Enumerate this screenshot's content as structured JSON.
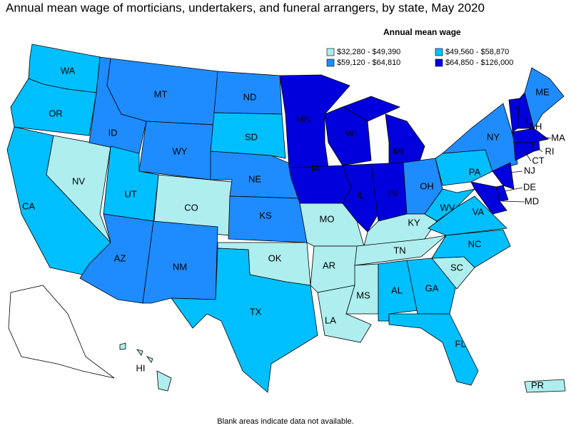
{
  "title": "Annual mean wage of morticians, undertakers, and funeral arrangers, by state, May 2020",
  "legend": {
    "title": "Annual mean wage",
    "items": [
      {
        "label": "$32,280 - $49,390",
        "color": "#aeeeee"
      },
      {
        "label": "$49,560 - $58,870",
        "color": "#00bfff"
      },
      {
        "label": "$59,120 - $64,810",
        "color": "#1e8cff"
      },
      {
        "label": "$64,850 - $126,000",
        "color": "#0000dd"
      }
    ]
  },
  "states": [
    {
      "abbr": "WA",
      "class": 1
    },
    {
      "abbr": "OR",
      "class": 1
    },
    {
      "abbr": "CA",
      "class": 1
    },
    {
      "abbr": "NV",
      "class": 0
    },
    {
      "abbr": "ID",
      "class": 2
    },
    {
      "abbr": "MT",
      "class": 2
    },
    {
      "abbr": "WY",
      "class": 2
    },
    {
      "abbr": "UT",
      "class": 1
    },
    {
      "abbr": "CO",
      "class": 0
    },
    {
      "abbr": "AZ",
      "class": 2
    },
    {
      "abbr": "NM",
      "class": 2
    },
    {
      "abbr": "ND",
      "class": 2
    },
    {
      "abbr": "SD",
      "class": 1
    },
    {
      "abbr": "NE",
      "class": 2
    },
    {
      "abbr": "KS",
      "class": 2
    },
    {
      "abbr": "OK",
      "class": 0
    },
    {
      "abbr": "TX",
      "class": 1
    },
    {
      "abbr": "MN",
      "class": 3
    },
    {
      "abbr": "IA",
      "class": 3
    },
    {
      "abbr": "MO",
      "class": 0
    },
    {
      "abbr": "AR",
      "class": 0
    },
    {
      "abbr": "LA",
      "class": 0
    },
    {
      "abbr": "WI",
      "class": 3
    },
    {
      "abbr": "IL",
      "class": 3
    },
    {
      "abbr": "MI",
      "class": 3
    },
    {
      "abbr": "IN",
      "class": 3
    },
    {
      "abbr": "OH",
      "class": 2
    },
    {
      "abbr": "KY",
      "class": 0
    },
    {
      "abbr": "TN",
      "class": 0
    },
    {
      "abbr": "MS",
      "class": 0
    },
    {
      "abbr": "AL",
      "class": 1
    },
    {
      "abbr": "GA",
      "class": 1
    },
    {
      "abbr": "FL",
      "class": 1
    },
    {
      "abbr": "SC",
      "class": 0
    },
    {
      "abbr": "NC",
      "class": 1
    },
    {
      "abbr": "VA",
      "class": 1
    },
    {
      "abbr": "WV",
      "class": 1
    },
    {
      "abbr": "PA",
      "class": 1
    },
    {
      "abbr": "NY",
      "class": 2
    },
    {
      "abbr": "VT",
      "class": 3
    },
    {
      "abbr": "NH",
      "class": 3
    },
    {
      "abbr": "ME",
      "class": 2
    },
    {
      "abbr": "MA",
      "class": 3
    },
    {
      "abbr": "RI",
      "class": 3
    },
    {
      "abbr": "CT",
      "class": 3
    },
    {
      "abbr": "NJ",
      "class": 3
    },
    {
      "abbr": "DE",
      "class": 3
    },
    {
      "abbr": "MD",
      "class": 3
    },
    {
      "abbr": "HI",
      "class": 0
    },
    {
      "abbr": "PR",
      "class": 0
    }
  ],
  "footnote": "Blank areas indicate data not available."
}
